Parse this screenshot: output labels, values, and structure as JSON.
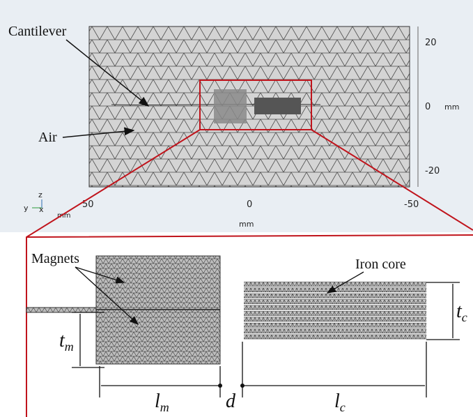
{
  "top_view": {
    "labels": {
      "cantilever": "Cantilever",
      "air": "Air"
    },
    "y_axis": {
      "ticks": [
        "20",
        "0",
        "-20"
      ],
      "unit": "mm"
    },
    "x_axis": {
      "ticks": [
        "50",
        "0",
        "-50"
      ],
      "unit": "mm"
    },
    "triad": {
      "z": "z",
      "y": "y",
      "x": "x",
      "unit": "mm"
    }
  },
  "detail_view": {
    "labels": {
      "magnets": "Magnets",
      "iron_core": "Iron core"
    },
    "dimensions": {
      "t_m": {
        "symbol": "t",
        "subscript": "m"
      },
      "t_c": {
        "symbol": "t",
        "subscript": "c"
      },
      "l_m": {
        "symbol": "l",
        "subscript": "m"
      },
      "d": {
        "symbol": "d"
      },
      "l_c": {
        "symbol": "l",
        "subscript": "c"
      }
    }
  }
}
